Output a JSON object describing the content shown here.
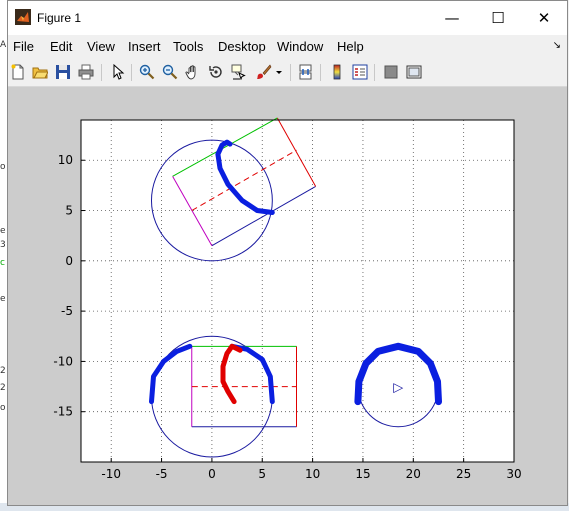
{
  "window": {
    "title": "Figure 1",
    "minimize": "—",
    "maximize": "☐",
    "close": "✕"
  },
  "menu": {
    "items": [
      "File",
      "Edit",
      "View",
      "Insert",
      "Tools",
      "Desktop",
      "Window",
      "Help"
    ],
    "overflow": "↘"
  },
  "toolbar": {
    "buttons": [
      {
        "icon": "new-figure-icon"
      },
      {
        "icon": "open-file-icon"
      },
      {
        "icon": "save-icon"
      },
      {
        "icon": "print-icon"
      },
      {
        "icon": "edit-plot-arrow-icon"
      },
      {
        "icon": "zoom-in-icon"
      },
      {
        "icon": "zoom-out-icon"
      },
      {
        "icon": "pan-hand-icon"
      },
      {
        "icon": "rotate-3d-icon"
      },
      {
        "icon": "data-cursor-icon"
      },
      {
        "icon": "brush-icon"
      },
      {
        "icon": "link-plot-icon"
      },
      {
        "icon": "colorbar-icon"
      },
      {
        "icon": "legend-icon"
      },
      {
        "icon": "hide-plot-tools-icon"
      },
      {
        "icon": "show-plot-tools-icon"
      }
    ]
  },
  "chart_data": {
    "type": "line",
    "xlim": [
      -13,
      30
    ],
    "ylim": [
      -20,
      14
    ],
    "xticks": [
      -10,
      -5,
      0,
      5,
      10,
      15,
      20,
      25,
      30
    ],
    "yticks": [
      10,
      5,
      0,
      -5,
      -10,
      -15
    ],
    "grid": true,
    "grid_style": "dotted",
    "colors": {
      "circle": "#1a1aa0",
      "arc": "#0a1fe0",
      "red": "#e00000",
      "green": "#00c000",
      "magenta": "#c000c0"
    },
    "shapes": {
      "circle1": {
        "center": [
          0,
          6
        ],
        "radius": 6
      },
      "circle2": {
        "center": [
          0,
          -13.5
        ],
        "radius": 6
      },
      "circle3": {
        "center": [
          18.5,
          -12.5
        ],
        "radius": 4
      },
      "rect1": {
        "corners": [
          [
            0,
            1.5
          ],
          [
            10.3,
            7.4
          ],
          [
            6.5,
            14.2
          ],
          [
            -3.9,
            8.4
          ]
        ]
      },
      "rect2": {
        "x": [
          -2,
          8.4
        ],
        "y": [
          -16.5,
          -8.5
        ]
      },
      "dash1": [
        [
          -2,
          5
        ],
        [
          8.4,
          11
        ]
      ],
      "dash2": [
        [
          -2,
          -12.5
        ],
        [
          8.4,
          -12.5
        ]
      ],
      "blue_arc1": [
        [
          1.8,
          11.6
        ],
        [
          1.5,
          11.8
        ],
        [
          1.0,
          11.5
        ],
        [
          0.6,
          10.6
        ],
        [
          0.8,
          9.2
        ],
        [
          1.6,
          7.6
        ],
        [
          3.0,
          6.0
        ],
        [
          4.5,
          5.0
        ],
        [
          6.0,
          4.8
        ]
      ],
      "blue_arc2_left": [
        [
          -6,
          -14
        ],
        [
          -5.8,
          -11.5
        ],
        [
          -4.8,
          -10
        ],
        [
          -3.5,
          -9.0
        ],
        [
          -2.2,
          -8.5
        ]
      ],
      "blue_arc2_right": [
        [
          2.0,
          -8.5
        ],
        [
          3.5,
          -8.8
        ],
        [
          5.0,
          -9.8
        ],
        [
          5.8,
          -11.5
        ],
        [
          6,
          -14
        ]
      ],
      "red_arc2": [
        [
          2.2,
          -14
        ],
        [
          1.6,
          -13
        ],
        [
          1.1,
          -12
        ],
        [
          1.1,
          -10.5
        ],
        [
          1.5,
          -9.2
        ],
        [
          2.0,
          -8.5
        ],
        [
          2.8,
          -8.9
        ]
      ],
      "blue_arc3": [
        [
          14.5,
          -14
        ],
        [
          14.6,
          -12
        ],
        [
          15.3,
          -10.2
        ],
        [
          16.5,
          -9.0
        ],
        [
          18.5,
          -8.5
        ],
        [
          20.5,
          -9.0
        ],
        [
          21.7,
          -10.2
        ],
        [
          22.4,
          -12
        ],
        [
          22.5,
          -14
        ]
      ],
      "marker3": {
        "point": [
          18.5,
          -12.5
        ],
        "symbol": "▷"
      }
    }
  }
}
